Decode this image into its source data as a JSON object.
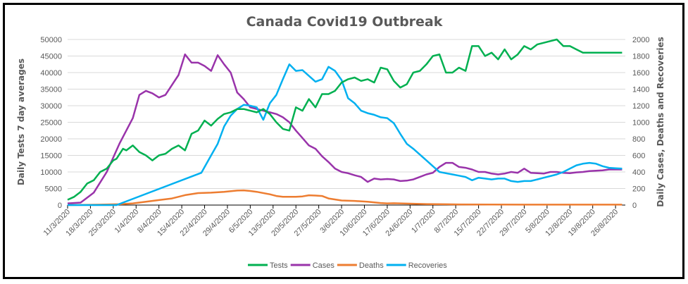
{
  "chart_data": {
    "type": "line",
    "title": "Canada Covid19 Outbreak",
    "ylabel": "Daily Tests 7 day averages",
    "y2label": "Daily Cases, Deaths and Recoveries",
    "ylim": [
      0,
      50000
    ],
    "y2lim": [
      0,
      2000
    ],
    "yticks": [
      "0",
      "5000",
      "10000",
      "15000",
      "20000",
      "25000",
      "30000",
      "35000",
      "40000",
      "45000",
      "50000"
    ],
    "y2ticks": [
      "0",
      "200",
      "400",
      "600",
      "800",
      "1000",
      "1200",
      "1400",
      "1600",
      "1800",
      "2000"
    ],
    "grid": true,
    "legend": "bottom",
    "x_days_range": [
      0,
      171
    ],
    "xticks": [
      "11/3/2020",
      "18/3/2020",
      "25/3/2020",
      "1/4/2020",
      "8/4/2020",
      "15/4/2020",
      "22/4/2020",
      "29/4/2020",
      "6/5/2020",
      "13/5/2020",
      "20/5/2020",
      "27/5/2020",
      "3/6/2020",
      "10/6/2020",
      "17/6/2020",
      "24/6/2020",
      "1/7/2020",
      "8/7/2020",
      "15/7/2020",
      "22/7/2020",
      "29/7/2020",
      "5/8/2020",
      "12/8/2020",
      "19/8/2020",
      "26/8/2020"
    ],
    "series": [
      {
        "name": "Tests",
        "axis": "left",
        "color": "#00b050",
        "days": [
          0,
          2,
          4,
          6,
          8,
          10,
          12,
          14,
          15,
          17,
          18,
          20,
          22,
          24,
          26,
          28,
          30,
          32,
          34,
          36,
          38,
          40,
          42,
          44,
          46,
          48,
          50,
          52,
          54,
          56,
          58,
          60,
          62,
          64,
          66,
          68,
          70,
          72,
          74,
          76,
          78,
          80,
          82,
          84,
          86,
          88,
          90,
          92,
          94,
          96,
          98,
          100,
          102,
          104,
          106,
          108,
          110,
          112,
          114,
          116,
          118,
          120,
          122,
          124,
          126,
          128,
          130,
          132,
          134,
          136,
          138,
          140,
          142,
          144,
          146,
          148,
          150,
          152,
          154,
          156,
          158,
          160,
          162,
          164,
          166,
          168,
          170
        ],
        "values": [
          1600,
          2500,
          4000,
          6500,
          7500,
          10000,
          11000,
          13500,
          14000,
          17000,
          16500,
          18000,
          16000,
          15000,
          13500,
          15000,
          15500,
          17000,
          18000,
          16500,
          21500,
          22500,
          25500,
          24000,
          26000,
          27500,
          28000,
          29000,
          29000,
          28500,
          28000,
          29000,
          27500,
          25000,
          23000,
          22500,
          29500,
          28500,
          32000,
          29500,
          33500,
          33500,
          34500,
          37000,
          38000,
          38500,
          37500,
          38000,
          37000,
          41500,
          41000,
          37500,
          35500,
          36500,
          40000,
          40500,
          42500,
          45000,
          45500,
          40000,
          40000,
          41500,
          40500,
          48000,
          48000,
          45000,
          46000,
          44000,
          47000,
          44000,
          45500,
          48000,
          47000,
          48500,
          49000,
          49500,
          50000,
          48000,
          48000,
          47000,
          46000,
          46000,
          46000,
          46000,
          46000,
          46000,
          46000
        ]
      },
      {
        "name": "Cases",
        "axis": "right",
        "color": "#9933aa",
        "days": [
          0,
          4,
          8,
          12,
          16,
          20,
          22,
          24,
          26,
          28,
          30,
          32,
          34,
          36,
          38,
          40,
          42,
          44,
          46,
          48,
          50,
          52,
          54,
          56,
          58,
          60,
          62,
          64,
          66,
          68,
          70,
          72,
          74,
          76,
          78,
          80,
          82,
          84,
          86,
          88,
          90,
          92,
          94,
          96,
          98,
          100,
          102,
          104,
          106,
          108,
          110,
          112,
          114,
          116,
          118,
          120,
          122,
          124,
          126,
          128,
          130,
          132,
          134,
          136,
          138,
          140,
          142,
          144,
          146,
          148,
          150,
          152,
          154,
          156,
          158,
          160,
          162,
          164,
          166,
          168,
          170
        ],
        "values": [
          20,
          30,
          150,
          400,
          750,
          1050,
          1330,
          1380,
          1350,
          1300,
          1330,
          1450,
          1570,
          1820,
          1720,
          1720,
          1680,
          1620,
          1810,
          1700,
          1600,
          1360,
          1280,
          1180,
          1160,
          1140,
          1120,
          1100,
          1060,
          1000,
          900,
          810,
          720,
          680,
          590,
          520,
          440,
          400,
          385,
          360,
          340,
          280,
          320,
          310,
          315,
          310,
          290,
          295,
          310,
          340,
          370,
          390,
          460,
          510,
          510,
          460,
          450,
          430,
          400,
          400,
          380,
          370,
          380,
          400,
          390,
          440,
          390,
          385,
          380,
          400,
          400,
          390,
          385,
          395,
          400,
          410,
          415,
          420,
          430,
          430,
          430
        ]
      },
      {
        "name": "Deaths",
        "axis": "right",
        "color": "#ed7d31",
        "days": [
          0,
          10,
          16,
          20,
          24,
          28,
          32,
          36,
          40,
          44,
          48,
          52,
          54,
          56,
          58,
          62,
          64,
          66,
          70,
          72,
          74,
          76,
          78,
          80,
          84,
          88,
          92,
          96,
          98,
          100,
          104,
          110,
          120,
          130,
          140,
          150,
          160,
          170
        ],
        "values": [
          0,
          5,
          10,
          20,
          40,
          60,
          80,
          120,
          145,
          150,
          160,
          175,
          178,
          170,
          160,
          130,
          110,
          100,
          100,
          105,
          118,
          115,
          110,
          80,
          55,
          50,
          40,
          25,
          20,
          22,
          18,
          12,
          8,
          6,
          5,
          5,
          5,
          5
        ]
      },
      {
        "name": "Recoveries",
        "axis": "right",
        "color": "#00b0f0",
        "days": [
          0,
          15,
          41,
          44,
          46,
          48,
          50,
          52,
          54,
          56,
          58,
          60,
          62,
          64,
          66,
          68,
          70,
          72,
          74,
          76,
          78,
          80,
          82,
          84,
          86,
          88,
          90,
          92,
          94,
          96,
          98,
          100,
          102,
          104,
          106,
          108,
          110,
          112,
          114,
          116,
          118,
          120,
          122,
          124,
          126,
          128,
          130,
          132,
          134,
          136,
          138,
          140,
          142,
          144,
          146,
          148,
          150,
          152,
          154,
          156,
          158,
          160,
          162,
          164,
          166,
          168,
          170
        ],
        "values": [
          0,
          0,
          390,
          600,
          740,
          950,
          1080,
          1160,
          1210,
          1200,
          1180,
          1030,
          1230,
          1330,
          1520,
          1700,
          1620,
          1630,
          1560,
          1490,
          1520,
          1670,
          1620,
          1510,
          1290,
          1230,
          1140,
          1110,
          1090,
          1060,
          1050,
          990,
          860,
          740,
          680,
          610,
          540,
          470,
          400,
          385,
          370,
          355,
          340,
          300,
          330,
          320,
          310,
          320,
          320,
          290,
          280,
          290,
          290,
          310,
          330,
          350,
          370,
          400,
          440,
          480,
          500,
          510,
          500,
          470,
          450,
          445,
          440
        ]
      }
    ]
  }
}
